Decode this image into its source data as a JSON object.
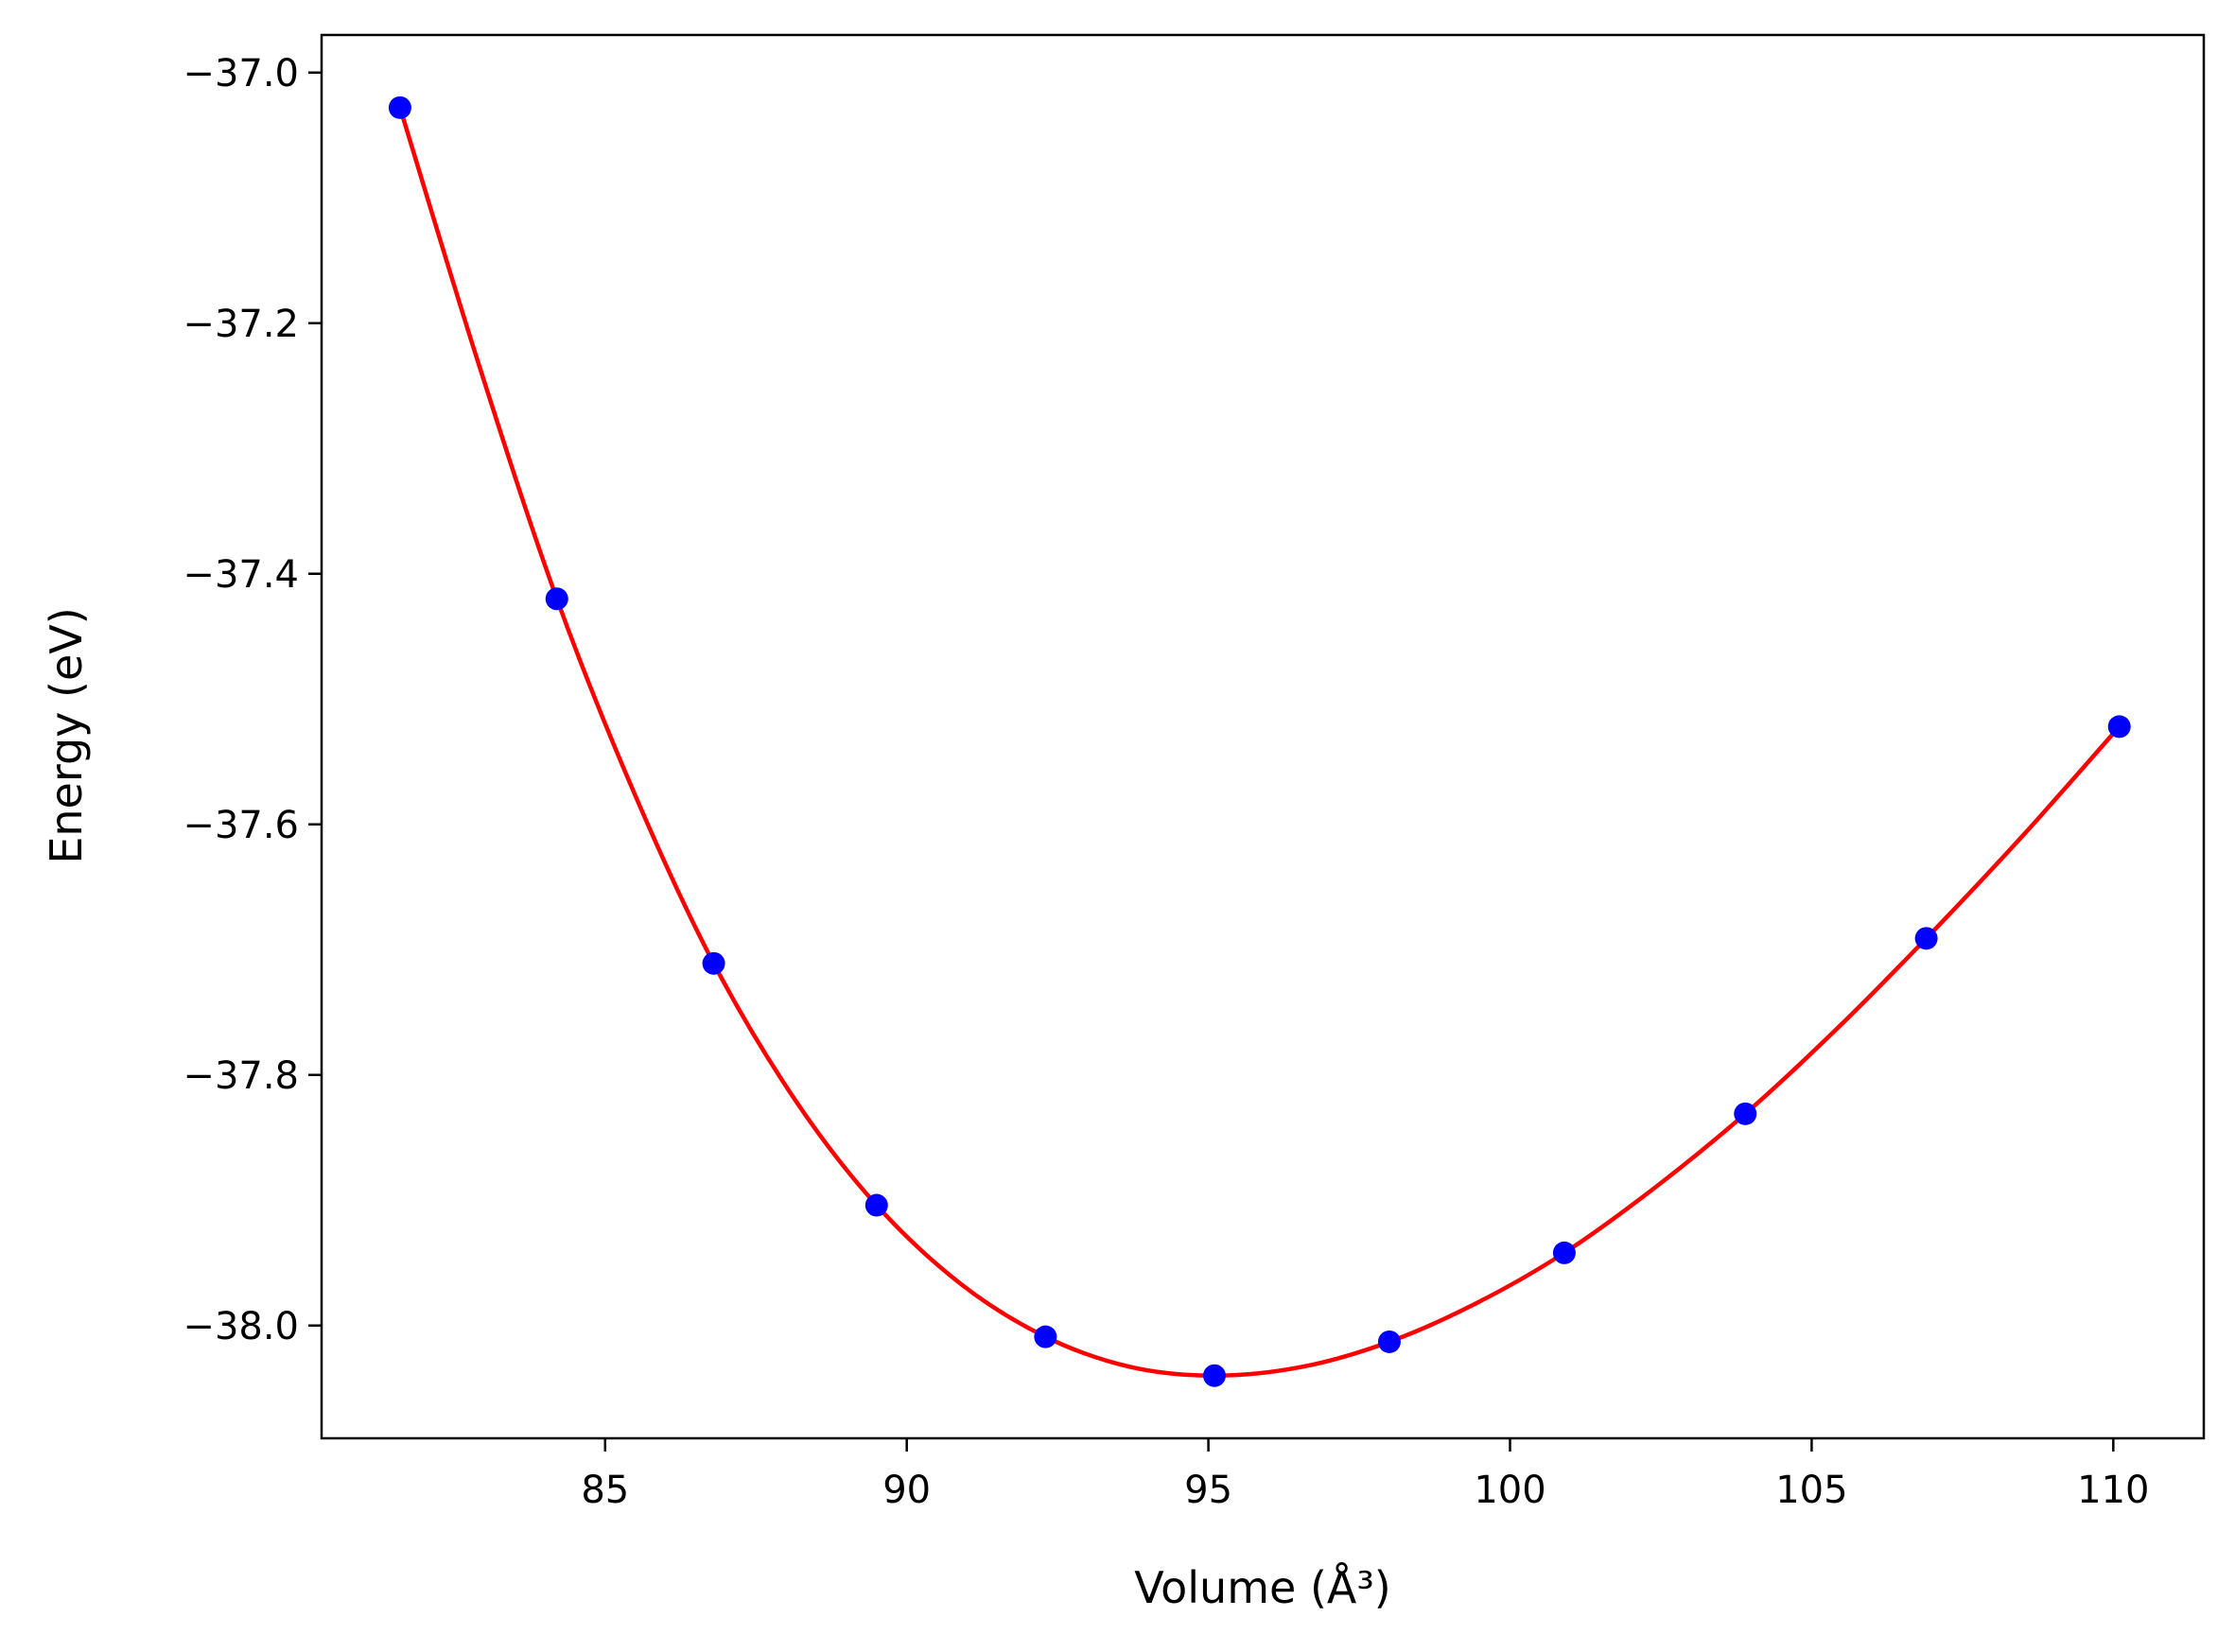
{
  "chart_data": {
    "type": "scatter",
    "title": "",
    "xlabel": "Volume (Å³)",
    "ylabel": "Energy (eV)",
    "xlim": [
      80.3,
      111.5
    ],
    "ylim": [
      -38.09,
      -36.97
    ],
    "xticks": [
      85,
      90,
      95,
      100,
      105,
      110
    ],
    "xtick_labels": [
      "85",
      "90",
      "95",
      "100",
      "105",
      "110"
    ],
    "yticks": [
      -37.0,
      -37.2,
      -37.4,
      -37.6,
      -37.8,
      -38.0
    ],
    "ytick_labels": [
      "−37.0",
      "−37.2",
      "−37.4",
      "−37.6",
      "−37.8",
      "−38.0"
    ],
    "grid": false,
    "series": [
      {
        "kind": "points",
        "color": "#0000ff",
        "x": [
          81.6,
          84.2,
          86.8,
          89.5,
          92.3,
          95.1,
          98.0,
          100.9,
          103.9,
          106.9,
          110.1
        ],
        "y": [
          -37.028,
          -37.42,
          -37.711,
          -37.904,
          -38.009,
          -38.04,
          -38.013,
          -37.942,
          -37.831,
          -37.691,
          -37.522
        ]
      },
      {
        "kind": "fit-curve",
        "color": "#ff0000",
        "x": [
          81.6,
          82.9,
          84.2,
          85.5,
          86.8,
          88.15,
          89.5,
          90.9,
          92.3,
          93.7,
          95.1,
          96.55,
          98.0,
          99.45,
          100.9,
          102.4,
          103.9,
          105.4,
          106.9,
          108.5,
          110.1
        ],
        "y": [
          -37.028,
          -37.232,
          -37.42,
          -37.577,
          -37.711,
          -37.82,
          -37.904,
          -37.967,
          -38.009,
          -38.033,
          -38.04,
          -38.033,
          -38.013,
          -37.982,
          -37.942,
          -37.89,
          -37.831,
          -37.764,
          -37.691,
          -37.609,
          -37.522
        ]
      }
    ]
  }
}
